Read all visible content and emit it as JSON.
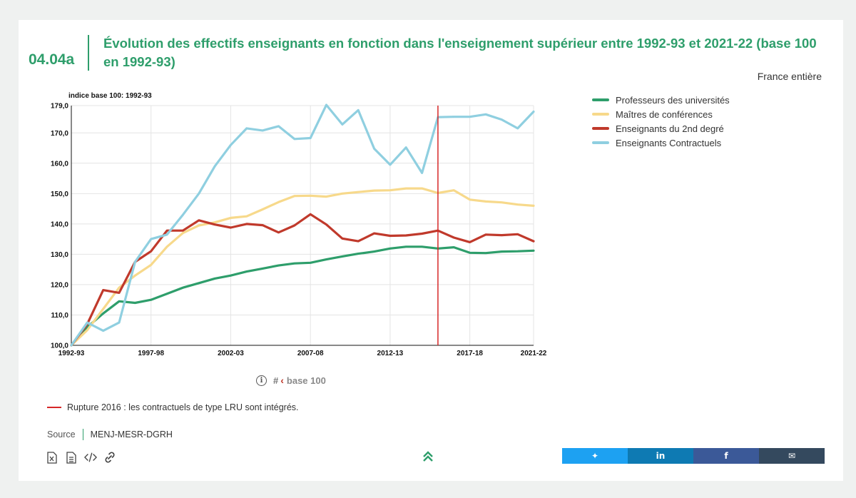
{
  "header": {
    "code": "04.04a",
    "title": "Évolution des effectifs enseignants en fonction dans l'enseignement supérieur entre 1992-93 et 2021-22 (base 100 en 1992-93)",
    "scope": "France entière"
  },
  "chart_data": {
    "type": "line",
    "subtitle": "indice base 100: 1992-93",
    "x": [
      "1992-93",
      "1993-94",
      "1994-95",
      "1995-96",
      "1996-97",
      "1997-98",
      "1998-99",
      "1999-00",
      "2000-01",
      "2001-02",
      "2002-03",
      "2003-04",
      "2004-05",
      "2005-06",
      "2006-07",
      "2007-08",
      "2008-09",
      "2009-10",
      "2010-11",
      "2011-12",
      "2012-13",
      "2013-14",
      "2014-15",
      "2015-16",
      "2016-17",
      "2017-18",
      "2018-19",
      "2019-20",
      "2020-21",
      "2021-22"
    ],
    "x_tick_labels": [
      "1992-93",
      "1997-98",
      "2002-03",
      "2007-08",
      "2012-13",
      "2017-18",
      "2021-22"
    ],
    "y_tick_labels": [
      "100,0",
      "110,0",
      "120,0",
      "130,0",
      "140,0",
      "150,0",
      "160,0",
      "170,0",
      "179,0"
    ],
    "ylim": [
      100,
      179
    ],
    "grid": true,
    "legend_position": "right",
    "series": [
      {
        "name": "Professeurs des universités",
        "color": "#2e9e6b",
        "values": [
          100,
          106,
          110.5,
          114.5,
          114,
          115,
          117,
          119,
          120.5,
          122,
          123,
          124.3,
          125.3,
          126.3,
          127,
          127.2,
          128.3,
          129.3,
          130.2,
          130.9,
          131.9,
          132.5,
          132.5,
          131.9,
          132.3,
          130.5,
          130.4,
          130.9,
          131,
          131.2
        ]
      },
      {
        "name": "Maîtres de conférences",
        "color": "#f7d98b",
        "values": [
          100,
          105,
          112,
          119,
          123,
          126.5,
          132.5,
          137,
          139.5,
          140.5,
          142,
          142.5,
          144.8,
          147.2,
          149.2,
          149.3,
          149,
          150,
          150.5,
          151,
          151.1,
          151.7,
          151.7,
          150.2,
          151.1,
          148,
          147.4,
          147.1,
          146.4,
          146
        ]
      },
      {
        "name": "Enseignants du 2nd degré",
        "color": "#c0392b",
        "values": [
          100,
          107,
          118.2,
          117.3,
          127.5,
          131,
          137.8,
          137.8,
          141.2,
          139.8,
          138.8,
          140,
          139.6,
          137.2,
          139.5,
          143.2,
          139.8,
          135.2,
          134.3,
          136.9,
          136.1,
          136.2,
          136.8,
          137.8,
          135.5,
          134,
          136.5,
          136.3,
          136.6,
          134.3
        ]
      },
      {
        "name": "Enseignants Contractuels",
        "color": "#8fcfe0",
        "values": [
          100,
          107.5,
          104.8,
          107.5,
          127.5,
          135,
          136.5,
          143,
          150,
          159,
          166,
          171.5,
          170.8,
          172.2,
          168,
          168.3,
          179.2,
          172.8,
          177.5,
          164.8,
          159.5,
          165.2,
          156.8,
          175.2,
          175.3,
          175.3,
          176.1,
          174.4,
          171.5,
          177
        ]
      }
    ],
    "break_year": "2015-16"
  },
  "controls": {
    "hash": "#",
    "chevron": "‹",
    "base_label": "base 100",
    "info_glyph": "i"
  },
  "note": "Rupture 2016 : les contractuels de type LRU sont intégrés.",
  "source": {
    "label": "Source",
    "value": "MENJ-MESR-DGRH"
  },
  "toolbar": {
    "icons": [
      "excel-icon",
      "document-icon",
      "code-icon",
      "link-icon"
    ]
  },
  "share": [
    {
      "name": "twitter-icon",
      "color": "#1da1f2",
      "glyph": "✦"
    },
    {
      "name": "linkedin-icon",
      "color": "#0e7ab3",
      "glyph": "in"
    },
    {
      "name": "facebook-icon",
      "color": "#3b5998",
      "glyph": "f"
    },
    {
      "name": "mail-icon",
      "color": "#34495e",
      "glyph": "✉"
    }
  ],
  "colors": {
    "accent": "#2e9e6b",
    "break_line": "#d62728"
  }
}
